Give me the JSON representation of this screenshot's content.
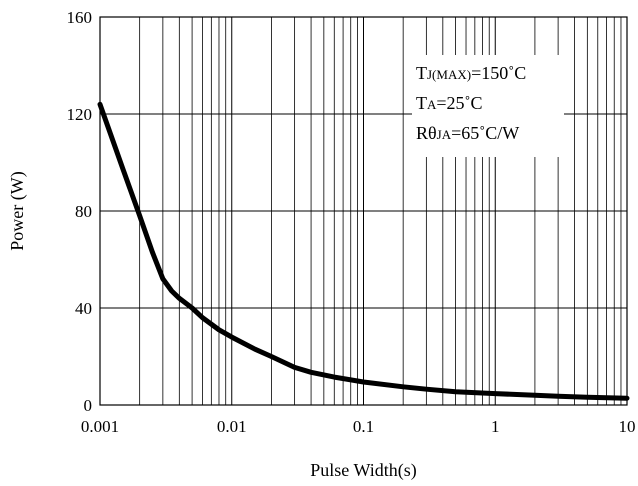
{
  "chart_data": {
    "type": "line",
    "title": "",
    "xlabel": "Pulse Width(s)",
    "ylabel": "Power (W)",
    "x_scale": "log",
    "xlim": [
      0.001,
      10
    ],
    "ylim": [
      0,
      160
    ],
    "x_ticks": [
      "0.001",
      "0.01",
      "0.1",
      "1",
      "10"
    ],
    "y_ticks": [
      "0",
      "40",
      "80",
      "120",
      "160"
    ],
    "grid": true,
    "series": [
      {
        "x": [
          0.001,
          0.0015,
          0.002,
          0.0025,
          0.003,
          0.0035,
          0.004,
          0.005,
          0.006,
          0.008,
          0.01,
          0.015,
          0.02,
          0.03,
          0.04,
          0.06,
          0.1,
          0.2,
          0.3,
          0.5,
          1,
          2,
          3,
          5,
          10
        ],
        "y": [
          124,
          97,
          78,
          63,
          52,
          47,
          44,
          40,
          36,
          31,
          28,
          23,
          20,
          15.5,
          13.5,
          11.5,
          9.5,
          7.5,
          6.5,
          5.5,
          4.7,
          4,
          3.6,
          3.2,
          2.8
        ]
      }
    ],
    "annotation": {
      "lines": [
        {
          "main": "T",
          "sub": "J(MAX)",
          "rest": "=150˚C"
        },
        {
          "main": "T",
          "sub": "A",
          "rest": "=25˚C"
        },
        {
          "main": "Rθ",
          "sub": "JA",
          "rest": "=65˚C/W"
        }
      ],
      "placement": "top-right"
    },
    "colors": {
      "line": "#000000",
      "grid": "#000000",
      "background": "#ffffff"
    }
  }
}
